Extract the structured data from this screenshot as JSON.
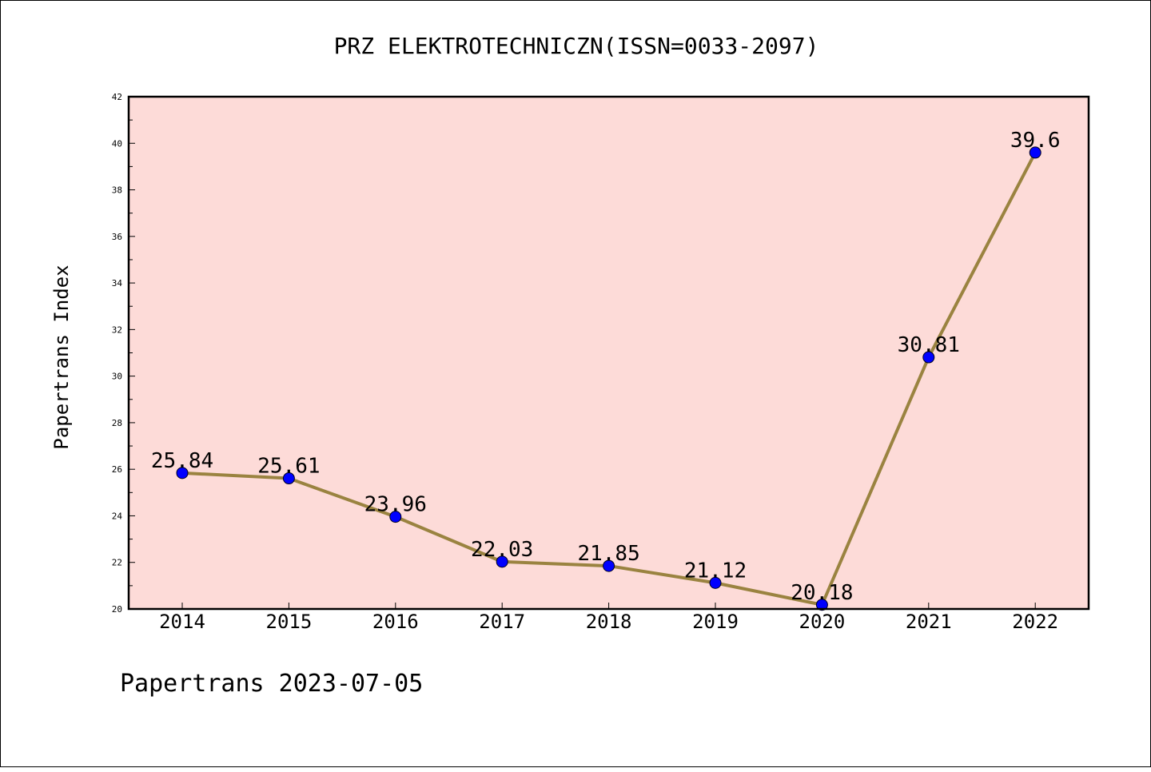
{
  "chart_data": {
    "type": "line",
    "title": "PRZ ELEKTROTECHNICZN(ISSN=0033-2097)",
    "xlabel": "",
    "ylabel": "Papertrans Index",
    "categories": [
      "2014",
      "2015",
      "2016",
      "2017",
      "2018",
      "2019",
      "2020",
      "2021",
      "2022"
    ],
    "series": [
      {
        "values": [
          25.84,
          25.61,
          23.96,
          22.03,
          21.85,
          21.12,
          20.18,
          30.81,
          39.6
        ],
        "labels": [
          "25.84",
          "25.61",
          "23.96",
          "22.03",
          "21.85",
          "21.12",
          "20.18",
          "30.81",
          "39.6"
        ],
        "line_color": "#9a8340",
        "marker_color": "#0000ff"
      }
    ],
    "ylim": [
      20,
      42
    ],
    "yticks": [
      "20",
      "22",
      "24",
      "26",
      "28",
      "30",
      "32",
      "34",
      "36",
      "38",
      "40",
      "42"
    ],
    "plot_background": "#fddbd8",
    "grid": false,
    "legend": "none"
  },
  "footer": "Papertrans 2023-07-05"
}
